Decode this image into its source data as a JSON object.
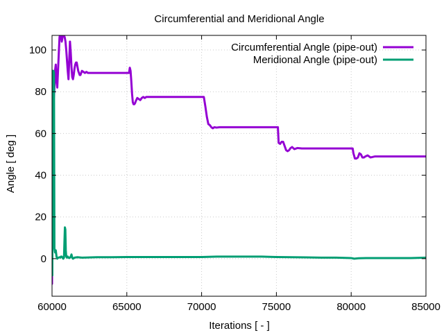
{
  "chart_data": {
    "type": "line",
    "title": "Circumferential and Meridional Angle",
    "xlabel": "Iterations [ - ]",
    "ylabel": "Angle [ deg ]",
    "xlim": [
      60000,
      85000
    ],
    "ylim": [
      -18,
      107
    ],
    "xticks": [
      60000,
      65000,
      70000,
      75000,
      80000,
      85000
    ],
    "yticks": [
      0,
      20,
      40,
      60,
      80,
      100
    ],
    "grid": true,
    "legend_position": "top-right",
    "series": [
      {
        "name": "Circumferential Angle (pipe-out)",
        "color": "#9400d3",
        "x": [
          60000,
          60050,
          60100,
          60150,
          60200,
          60250,
          60300,
          60350,
          60400,
          60450,
          60500,
          60550,
          60600,
          60650,
          60700,
          60750,
          60800,
          60850,
          60900,
          60950,
          61000,
          61050,
          61100,
          61150,
          61200,
          61250,
          61300,
          61350,
          61400,
          61450,
          61500,
          61550,
          61600,
          61650,
          61700,
          61750,
          61800,
          61850,
          61900,
          61950,
          62000,
          62100,
          62200,
          62300,
          62400,
          62500,
          62600,
          62700,
          62800,
          62900,
          63000,
          63500,
          64000,
          64500,
          65000,
          65150,
          65200,
          65250,
          65300,
          65350,
          65400,
          65450,
          65500,
          65550,
          65600,
          65700,
          65800,
          65900,
          66000,
          66100,
          66200,
          66300,
          66500,
          67000,
          67500,
          68000,
          68500,
          69000,
          69500,
          70000,
          70150,
          70250,
          70350,
          70450,
          70550,
          70650,
          70750,
          70850,
          71000,
          71200,
          71500,
          72000,
          73000,
          74000,
          75000,
          75100,
          75150,
          75250,
          75350,
          75450,
          75550,
          75650,
          75750,
          75850,
          75950,
          76050,
          76200,
          76400,
          76700,
          77000,
          78000,
          79000,
          80000,
          80100,
          80150,
          80250,
          80350,
          80450,
          80550,
          80650,
          80750,
          80850,
          80950,
          81100,
          81300,
          81600,
          82000,
          83000,
          84000,
          85000
        ],
        "y": [
          -12,
          90,
          75,
          80,
          90,
          93,
          85,
          82,
          90,
          98,
          106,
          108,
          107,
          104,
          106,
          108,
          107,
          106,
          104,
          100,
          95,
          90,
          86,
          95,
          104,
          99,
          92,
          87,
          86,
          88,
          91,
          93,
          94,
          94,
          92,
          90,
          89,
          88,
          88,
          89,
          90,
          89.5,
          89,
          89.5,
          89,
          89,
          89,
          89,
          89,
          89,
          89,
          89,
          89,
          89,
          89,
          89,
          91.5,
          90,
          85,
          79,
          75,
          74,
          74,
          74.5,
          75.5,
          77,
          76.5,
          76,
          77,
          77.5,
          77,
          77.5,
          77.5,
          77.5,
          77.5,
          77.5,
          77.5,
          77.5,
          77.5,
          77.5,
          77.5,
          73,
          68,
          64.5,
          64,
          63,
          62.5,
          63,
          62.8,
          63,
          63,
          63,
          63,
          63,
          63,
          63,
          55.5,
          55,
          56,
          56,
          54,
          52,
          51.5,
          52,
          53,
          53.5,
          52.5,
          53,
          52.8,
          52.8,
          52.8,
          52.8,
          52.8,
          52.8,
          50.5,
          48,
          48,
          48.5,
          50.5,
          50,
          48.5,
          48.5,
          49,
          49.5,
          48.5,
          49,
          49,
          49,
          49,
          49
        ]
      },
      {
        "name": "Meridional Angle (pipe-out)",
        "color": "#009e73",
        "x": [
          60000,
          60020,
          60050,
          60080,
          60100,
          60130,
          60160,
          60200,
          60250,
          60300,
          60350,
          60400,
          60450,
          60500,
          60550,
          60600,
          60650,
          60700,
          60750,
          60800,
          60830,
          60860,
          60890,
          60920,
          60950,
          61000,
          61050,
          61100,
          61150,
          61200,
          61250,
          61300,
          61350,
          61400,
          61500,
          61700,
          62000,
          63000,
          64000,
          65000,
          66000,
          67000,
          68000,
          69000,
          70000,
          71000,
          72000,
          73000,
          74000,
          75000,
          76000,
          77000,
          78000,
          79000,
          80000,
          80200,
          80500,
          81000,
          82000,
          83000,
          84000,
          85000
        ],
        "y": [
          0,
          -8,
          90,
          85,
          90,
          89,
          5,
          3,
          4,
          1,
          0,
          0.5,
          0.5,
          0.7,
          0.5,
          1,
          1,
          0.5,
          0,
          0.5,
          8,
          15,
          14,
          4,
          1,
          0.5,
          1,
          0.5,
          0.3,
          0.5,
          1,
          2,
          0.5,
          0,
          0.5,
          0.7,
          0.5,
          0.7,
          0.7,
          0.8,
          0.8,
          0.8,
          0.8,
          0.8,
          0.8,
          1,
          1,
          1,
          1,
          0.8,
          0.7,
          0.6,
          0.5,
          0.5,
          0.3,
          0,
          0.2,
          0.3,
          0.3,
          0.3,
          0.3,
          0.5
        ]
      }
    ]
  }
}
